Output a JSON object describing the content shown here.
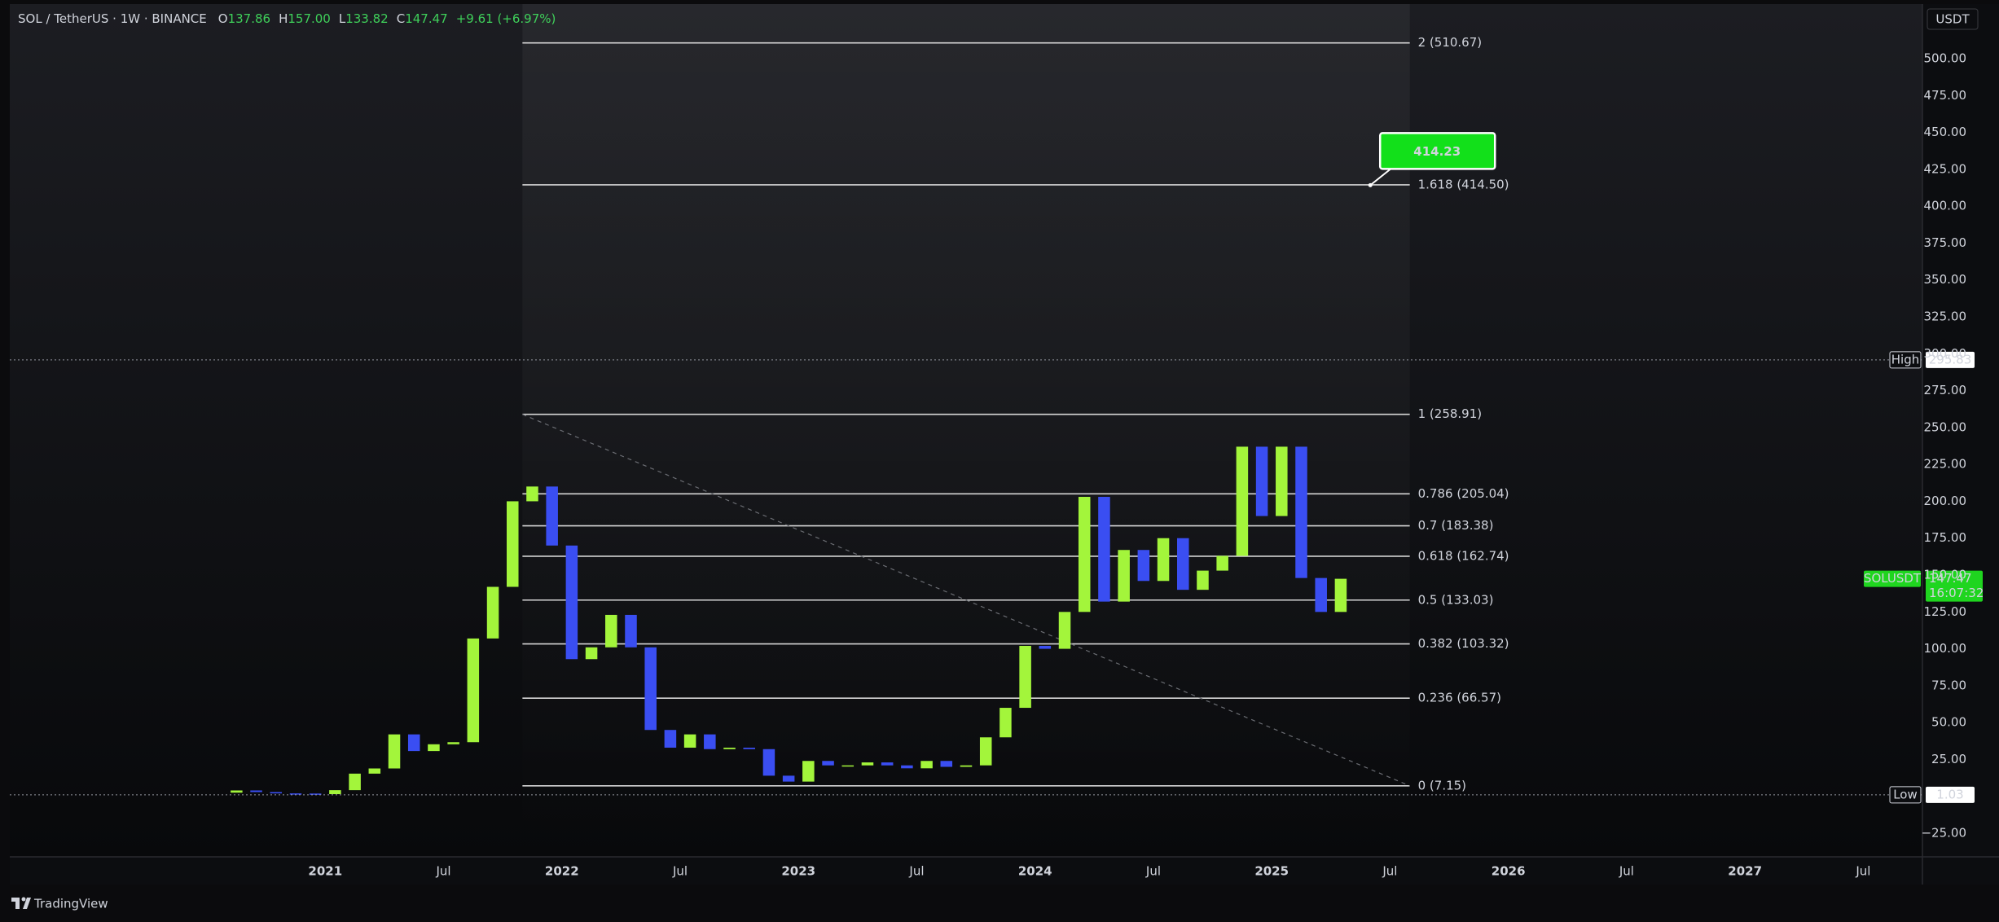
{
  "header": {
    "symbol": "SOL / TetherUS · 1W · BINANCE",
    "ohlc": [
      {
        "key": "O",
        "value": "137.86"
      },
      {
        "key": "H",
        "value": "157.00"
      },
      {
        "key": "L",
        "value": "133.82"
      },
      {
        "key": "C",
        "value": "147.47"
      }
    ],
    "change": "+9.61 (+6.97%)"
  },
  "currency_button": "USDT",
  "brand": "TradingView",
  "chart_data": {
    "type": "candlestick",
    "up_color": "#a3f53b",
    "down_color": "#3a4ef2",
    "x": [
      "2020-08",
      "2020-09",
      "2020-10",
      "2020-11",
      "2020-12",
      "2021-01",
      "2021-02",
      "2021-03",
      "2021-04",
      "2021-05",
      "2021-06",
      "2021-07",
      "2021-08",
      "2021-09",
      "2021-10",
      "2021-11",
      "2021-12",
      "2022-01",
      "2022-02",
      "2022-03",
      "2022-04",
      "2022-05",
      "2022-06",
      "2022-07",
      "2022-08",
      "2022-09",
      "2022-10",
      "2022-11",
      "2022-12",
      "2023-01",
      "2023-02",
      "2023-03",
      "2023-04",
      "2023-05",
      "2023-06",
      "2023-07",
      "2023-08",
      "2023-09",
      "2023-10",
      "2023-11",
      "2023-12",
      "2024-01",
      "2024-02",
      "2024-03",
      "2024-04",
      "2024-05",
      "2024-06",
      "2024-07",
      "2024-08",
      "2024-09",
      "2024-10",
      "2024-11",
      "2024-12",
      "2025-01",
      "2025-02",
      "2025-03",
      "2025-04"
    ],
    "open": [
      2.5,
      4.0,
      2.9,
      2.0,
      1.9,
      1.5,
      4.2,
      15.4,
      18.9,
      42,
      30.7,
      35.3,
      36.7,
      107,
      142,
      200,
      210,
      170,
      93,
      101,
      123,
      101,
      45,
      33,
      42,
      32,
      33,
      32,
      14,
      10,
      24,
      21,
      21,
      23,
      21,
      19,
      24,
      20,
      21,
      40,
      60,
      102,
      100,
      125,
      203,
      132,
      167,
      146,
      175,
      140,
      153,
      163,
      237,
      190,
      237,
      148,
      125
    ],
    "high": {
      "label": "High",
      "value": 295.83
    },
    "low": {
      "label": "Low",
      "value": 1.03
    },
    "close": [
      4.0,
      2.9,
      2.0,
      1.9,
      1.5,
      4.2,
      15.4,
      18.9,
      42,
      30.7,
      35.3,
      36.7,
      107,
      142,
      200,
      210,
      170,
      93,
      101,
      123,
      101,
      45,
      33,
      42,
      32,
      33,
      32,
      14,
      10,
      24,
      21,
      21,
      23,
      21,
      19,
      24,
      20,
      21,
      40,
      60,
      102,
      100,
      125,
      203,
      132,
      167,
      146,
      175,
      140,
      153,
      163,
      237,
      190,
      237,
      148,
      125,
      147.47
    ],
    "xlim": [
      "2019-09",
      "2027-10"
    ],
    "ylim": [
      -41,
      537
    ],
    "xticks": [
      {
        "value": "2021-01",
        "label": "2021"
      },
      {
        "value": "2021-07",
        "label": "Jul"
      },
      {
        "value": "2022-01",
        "label": "2022"
      },
      {
        "value": "2022-07",
        "label": "Jul"
      },
      {
        "value": "2023-01",
        "label": "2023"
      },
      {
        "value": "2023-07",
        "label": "Jul"
      },
      {
        "value": "2024-01",
        "label": "2024"
      },
      {
        "value": "2024-07",
        "label": "Jul"
      },
      {
        "value": "2025-01",
        "label": "2025"
      },
      {
        "value": "2025-07",
        "label": "Jul"
      },
      {
        "value": "2026-01",
        "label": "2026"
      },
      {
        "value": "2026-07",
        "label": "Jul"
      },
      {
        "value": "2027-01",
        "label": "2027"
      },
      {
        "value": "2027-07",
        "label": "Jul"
      }
    ],
    "yticks": [
      {
        "value": -25,
        "label": "−25.00"
      },
      {
        "value": 25,
        "label": "25.00"
      },
      {
        "value": 50,
        "label": "50.00"
      },
      {
        "value": 75,
        "label": "75.00"
      },
      {
        "value": 100,
        "label": "100.00"
      },
      {
        "value": 125,
        "label": "125.00"
      },
      {
        "value": 150,
        "label": "150.00"
      },
      {
        "value": 175,
        "label": "175.00"
      },
      {
        "value": 200,
        "label": "200.00"
      },
      {
        "value": 225,
        "label": "225.00"
      },
      {
        "value": 250,
        "label": "250.00"
      },
      {
        "value": 275,
        "label": "275.00"
      },
      {
        "value": 300,
        "label": "300.00"
      },
      {
        "value": 325,
        "label": "325.00"
      },
      {
        "value": 350,
        "label": "350.00"
      },
      {
        "value": 375,
        "label": "375.00"
      },
      {
        "value": 400,
        "label": "400.00"
      },
      {
        "value": 425,
        "label": "425.00"
      },
      {
        "value": 450,
        "label": "450.00"
      },
      {
        "value": 475,
        "label": "475.00"
      },
      {
        "value": 500,
        "label": "500.00"
      }
    ],
    "fib": {
      "x_start": "2021-11",
      "x_end": "2025-08",
      "levels": [
        {
          "value": 510.67,
          "label": "2 (510.67)"
        },
        {
          "value": 414.5,
          "label": "1.618 (414.50)"
        },
        {
          "value": 258.91,
          "label": "1 (258.91)"
        },
        {
          "value": 205.04,
          "label": "0.786 (205.04)"
        },
        {
          "value": 183.38,
          "label": "0.7 (183.38)"
        },
        {
          "value": 162.74,
          "label": "0.618 (162.74)"
        },
        {
          "value": 133.03,
          "label": "0.5 (133.03)"
        },
        {
          "value": 103.32,
          "label": "0.382 (103.32)"
        },
        {
          "value": 66.57,
          "label": "0.236 (66.57)"
        },
        {
          "value": 7.15,
          "label": "0 (7.15)"
        }
      ]
    },
    "last": {
      "symbol": "SOLUSDT",
      "value": 147.47,
      "countdown": "16:07:32"
    },
    "callout": {
      "x": "2025-06",
      "value": 414.23
    }
  }
}
